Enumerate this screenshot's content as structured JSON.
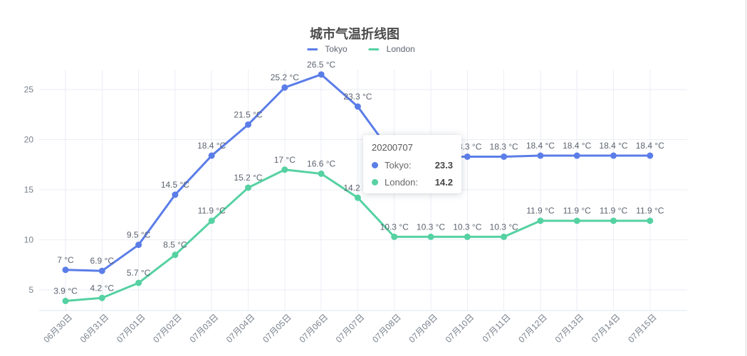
{
  "title": "城市气温折线图",
  "legend": {
    "items": [
      {
        "label": "Tokyo",
        "color": "#5B7DE8"
      },
      {
        "label": "London",
        "color": "#55D1A2"
      }
    ]
  },
  "tooltip": {
    "title": "20200707",
    "rows": [
      {
        "name": "Tokyo:",
        "value": "23.3",
        "color": "#5B7DE8"
      },
      {
        "name": "London:",
        "value": "14.2",
        "color": "#55D1A2"
      }
    ]
  },
  "chart_data": {
    "type": "line",
    "title": "城市气温折线图",
    "categories": [
      "06月30日",
      "06月31日",
      "07月01日",
      "07月02日",
      "07月03日",
      "07月04日",
      "07月05日",
      "07月06日",
      "07月07日",
      "07月08日",
      "07月09日",
      "07月10日",
      "07月11日",
      "07月12日",
      "07月13日",
      "07月14日",
      "07月15日"
    ],
    "series": [
      {
        "name": "Tokyo",
        "color": "#5B7DE8",
        "values": [
          7,
          6.9,
          9.5,
          14.5,
          18.4,
          21.5,
          25.2,
          26.5,
          23.3,
          18.3,
          18.3,
          18.3,
          18.3,
          18.4,
          18.4,
          18.4,
          18.4
        ]
      },
      {
        "name": "London",
        "color": "#55D1A2",
        "values": [
          3.9,
          4.2,
          5.7,
          8.5,
          11.9,
          15.2,
          17,
          16.6,
          14.2,
          10.3,
          10.3,
          10.3,
          10.3,
          11.9,
          11.9,
          11.9,
          11.9
        ]
      }
    ],
    "unit": "°C",
    "point_label_format": "{value} °C",
    "xlabel": "",
    "ylabel": "",
    "y_ticks": [
      5,
      10,
      15,
      20,
      25
    ],
    "ylim": [
      2.9,
      27
    ],
    "grid": true,
    "legend_position": "top",
    "x_label_rotation": 45
  },
  "colors": {
    "grid_line": "#EBEEF5",
    "axis_line": "#DFE4EE",
    "axis_label": "#78808C",
    "data_label": "#5C6370",
    "title_text": "#4A4A4A",
    "legend_text": "#5E6470",
    "tooltip_title": "#575757",
    "tooltip_value": "#464646",
    "background": "#FFFFFF"
  }
}
